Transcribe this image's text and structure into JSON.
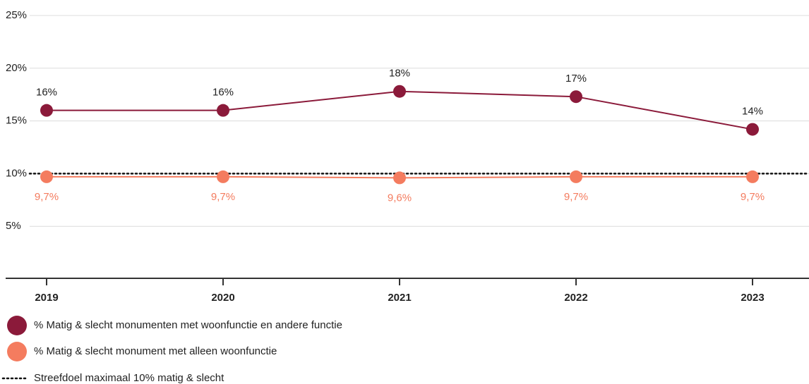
{
  "chart_data": {
    "type": "line",
    "categories": [
      "2019",
      "2020",
      "2021",
      "2022",
      "2023"
    ],
    "series": [
      {
        "name": "% Matig & slecht monumenten met woonfunctie en andere functie",
        "color": "#8b1a3a",
        "values": [
          16,
          16,
          17.8,
          17.3,
          14.2
        ],
        "value_labels": [
          "16%",
          "16%",
          "18%",
          "17%",
          "14%"
        ]
      },
      {
        "name": "% Matig & slecht monument met alleen woonfunctie",
        "color": "#f47c5f",
        "values": [
          9.7,
          9.7,
          9.6,
          9.7,
          9.7
        ],
        "value_labels": [
          "9,7%",
          "9,7%",
          "9,6%",
          "9,7%",
          "9,7%"
        ]
      }
    ],
    "reference_line": {
      "value": 10,
      "label": "Streefdoel maximaal 10% matig & slecht",
      "color": "#111111"
    },
    "ylim": [
      0,
      25
    ],
    "yticks": [
      {
        "value": 5,
        "label": "5%"
      },
      {
        "value": 10,
        "label": "10%"
      },
      {
        "value": 15,
        "label": "15%"
      },
      {
        "value": 20,
        "label": "20%"
      },
      {
        "value": 25,
        "label": "25%"
      }
    ],
    "grid": true
  }
}
